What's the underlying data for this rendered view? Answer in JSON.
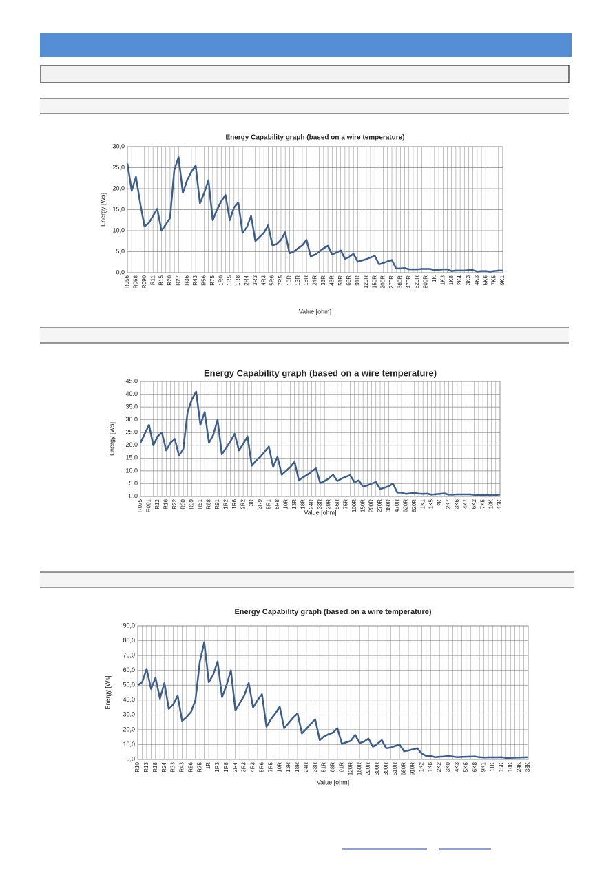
{
  "chart_data": [
    {
      "type": "line",
      "title": "Energy Capability graph (based on a wire temperature)",
      "y_label": "Energy [Ws]",
      "x_label": "Value [ohm]",
      "color": "#3b5e8c",
      "grid": true,
      "categories": [
        "R056",
        null,
        "R068",
        null,
        "R090",
        null,
        "R11",
        null,
        "R15",
        null,
        "R20",
        null,
        "R27",
        null,
        "R36",
        null,
        "R43",
        null,
        "R56",
        null,
        "R75",
        null,
        "1R0",
        null,
        "1R5",
        null,
        "1R8",
        null,
        "2R4",
        null,
        "3R3",
        null,
        "4R3",
        null,
        "5R6",
        null,
        "7R5",
        null,
        "10R",
        null,
        "13R",
        null,
        "18R",
        null,
        "24R",
        null,
        "33R",
        null,
        "43R",
        null,
        "51R",
        null,
        "68R",
        null,
        "91R",
        null,
        "120R",
        null,
        "150R",
        null,
        "200R",
        null,
        "270R",
        null,
        "360R",
        null,
        "470R",
        null,
        "620R",
        null,
        "800R",
        null,
        "1K",
        null,
        "1K3",
        null,
        "1K8",
        null,
        "2K4",
        null,
        "3K3",
        null,
        "4K3",
        null,
        "5K6",
        null,
        "7K5",
        null,
        "9K1"
      ],
      "values": [
        26,
        19.5,
        22.8,
        16.5,
        11,
        11.8,
        13.5,
        15.2,
        10,
        11.5,
        13,
        24.5,
        27.5,
        19,
        22,
        24,
        25.5,
        16.5,
        19,
        22,
        12.5,
        15,
        17,
        18.5,
        12.5,
        15.5,
        16.7,
        9.5,
        10.8,
        13.5,
        7.5,
        8.5,
        9.5,
        11.3,
        6.5,
        6.8,
        7.8,
        9.6,
        4.6,
        5,
        5.8,
        6.5,
        7.8,
        3.8,
        4.3,
        5,
        5.8,
        6.4,
        4.3,
        4.8,
        5.3,
        3.3,
        3.7,
        4.5,
        2.6,
        2.9,
        3.2,
        3.6,
        4,
        2,
        2.3,
        2.7,
        3,
        1,
        1,
        1.1,
        0.8,
        0.8,
        0.8,
        0.9,
        0.9,
        0.9,
        0.6,
        0.7,
        0.8,
        0.8,
        0.4,
        0.5,
        0.5,
        0.5,
        0.6,
        0.6,
        0.3,
        0.4,
        0.4,
        0.3,
        0.4,
        0.5,
        0.5
      ],
      "ylim": [
        0,
        30
      ],
      "yticks": [
        {
          "value": 0,
          "label": "0,0"
        },
        {
          "value": 5,
          "label": "5,0"
        },
        {
          "value": 10,
          "label": "10,0"
        },
        {
          "value": 15,
          "label": "15,0"
        },
        {
          "value": 20,
          "label": "20,0"
        },
        {
          "value": 25,
          "label": "25,0"
        },
        {
          "value": 30,
          "label": "30,0"
        }
      ]
    },
    {
      "type": "line",
      "title": "Energy Capability graph (based on a wire temperature)",
      "y_label": "Energy [Ws]",
      "x_label": "Value [ohm]",
      "color": "#3b5e8c",
      "grid": true,
      "categories": [
        "R075",
        null,
        "R091",
        null,
        "R12",
        null,
        "R16",
        null,
        "R22",
        null,
        "R30",
        null,
        "R39",
        null,
        "R51",
        null,
        "R68",
        null,
        "R91",
        null,
        "1R2",
        null,
        "1R6",
        null,
        "2R2",
        null,
        "3R",
        null,
        "3R9",
        null,
        "5R1",
        null,
        "6R8",
        null,
        "10R",
        null,
        "13R",
        null,
        "18R",
        null,
        "24R",
        null,
        "33R",
        null,
        "39R",
        null,
        "56R",
        null,
        "75R",
        null,
        "100R",
        null,
        "150R",
        null,
        "200R",
        null,
        "270R",
        null,
        "360R",
        null,
        "470R",
        null,
        "620R",
        null,
        "820R",
        null,
        "1K1",
        null,
        "1K5",
        null,
        "2K",
        null,
        "2K7",
        null,
        "3K6",
        null,
        "4K7",
        null,
        "6K2",
        null,
        "7K5",
        null,
        "10K",
        null,
        "15K"
      ],
      "values": [
        21,
        24.5,
        28,
        20,
        23.5,
        25,
        18,
        21,
        22.5,
        16,
        18.5,
        33,
        38,
        41,
        28,
        33,
        21,
        24,
        30,
        16.5,
        19,
        21.5,
        24.5,
        18,
        20.5,
        23.5,
        12,
        14,
        15.5,
        17.5,
        19.5,
        11.5,
        15.5,
        8.5,
        10,
        11.5,
        13.5,
        6.3,
        7.5,
        8.5,
        9.8,
        11,
        5.2,
        6,
        7,
        8.5,
        6,
        7,
        7.7,
        8.3,
        5.5,
        6.3,
        3.8,
        4.3,
        5,
        5.6,
        2.9,
        3.4,
        4,
        5,
        1.5,
        1.5,
        1,
        1.2,
        1.4,
        1.1,
        1,
        1.1,
        0.7,
        0.9,
        1,
        1.2,
        0.7,
        0.7,
        0.8,
        0.8,
        0.8,
        0.8,
        0.6,
        0.5,
        0.5,
        0.5,
        0.5,
        0.5,
        0.8
      ],
      "ylim": [
        0,
        45
      ],
      "yticks": [
        {
          "value": 0,
          "label": "0.0"
        },
        {
          "value": 5,
          "label": "5.0"
        },
        {
          "value": 10,
          "label": "10.0"
        },
        {
          "value": 15,
          "label": "15.0"
        },
        {
          "value": 20,
          "label": "20.0"
        },
        {
          "value": 25,
          "label": "25.0"
        },
        {
          "value": 30,
          "label": "30.0"
        },
        {
          "value": 35,
          "label": "35.0"
        },
        {
          "value": 40,
          "label": "40.0"
        },
        {
          "value": 45,
          "label": "45.0"
        }
      ]
    },
    {
      "type": "line",
      "title": "Energy Capability graph (based on a wire temperature)",
      "y_label": "Energy [Ws]",
      "x_label": "Value [ohm]",
      "color": "#3b5e8c",
      "grid": true,
      "categories": [
        "R10",
        null,
        "R13",
        null,
        "R18",
        null,
        "R24",
        null,
        "R33",
        null,
        "R43",
        null,
        "R56",
        null,
        "R75",
        null,
        "1R",
        null,
        "1R3",
        null,
        "1R8",
        null,
        "2R4",
        null,
        "3R3",
        null,
        "4R3",
        null,
        "5R6",
        null,
        "7R5",
        null,
        "10R",
        null,
        "13R",
        null,
        "18R",
        null,
        "24R",
        null,
        "33R",
        null,
        "51R",
        null,
        "68R",
        null,
        "91R",
        null,
        "120R",
        null,
        "160R",
        null,
        "220R",
        null,
        "300R",
        null,
        "390R",
        null,
        "510R",
        null,
        "680R",
        null,
        "910R",
        null,
        "1K2",
        null,
        "1K6",
        null,
        "2K2",
        null,
        "3K0",
        null,
        "4K3",
        null,
        "5K6",
        null,
        "6K8",
        null,
        "9K1",
        null,
        "11K",
        null,
        "15K",
        null,
        "18K",
        null,
        "24K",
        null,
        "33K"
      ],
      "values": [
        50,
        52,
        61,
        47.5,
        55,
        41,
        51.5,
        34,
        37,
        43,
        26,
        28.5,
        32,
        40,
        66,
        79,
        52,
        57,
        66,
        42,
        50,
        60,
        33,
        38,
        43,
        51.5,
        35,
        40,
        44,
        22,
        27,
        31,
        35.5,
        21,
        24.5,
        28,
        31,
        17.5,
        20.5,
        24,
        27,
        13,
        15.5,
        17,
        18,
        21,
        10.5,
        11.5,
        12.5,
        16.5,
        11,
        12,
        14,
        8.5,
        10.5,
        13,
        7.5,
        8,
        9,
        10,
        5.5,
        6,
        6.8,
        7.5,
        4,
        2.3,
        2.5,
        1.5,
        1.8,
        2,
        2.3,
        2,
        1.5,
        1.7,
        1.8,
        1.9,
        2,
        1.5,
        1.3,
        1.4,
        1.4,
        1.4,
        1.5,
        1,
        1,
        1.2,
        1.3,
        1.4,
        1.5
      ],
      "ylim": [
        0,
        90
      ],
      "yticks": [
        {
          "value": 0,
          "label": "0,0"
        },
        {
          "value": 10,
          "label": "10,0"
        },
        {
          "value": 20,
          "label": "20,0"
        },
        {
          "value": 30,
          "label": "30,0"
        },
        {
          "value": 40,
          "label": "40,0"
        },
        {
          "value": 50,
          "label": "50,0"
        },
        {
          "value": 60,
          "label": "60,0"
        },
        {
          "value": 70,
          "label": "70,0"
        },
        {
          "value": 80,
          "label": "80,0"
        },
        {
          "value": 90,
          "label": "90,0"
        }
      ]
    }
  ]
}
